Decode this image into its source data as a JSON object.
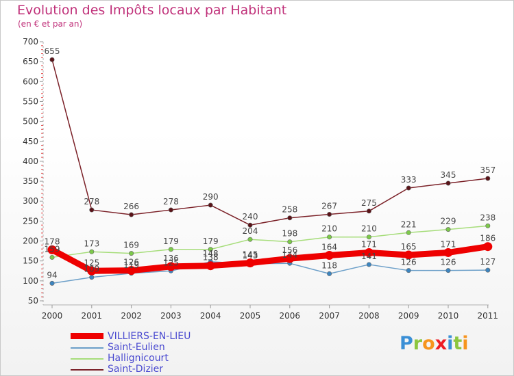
{
  "title": "Evolution des Impôts locaux par Habitant",
  "subtitle": "(en € et par an)",
  "brand": {
    "text": "Proxiti",
    "letters": [
      {
        "char": "P",
        "color": "#3a8fd6"
      },
      {
        "char": "r",
        "color": "#8cc63f"
      },
      {
        "char": "o",
        "color": "#f7941d"
      },
      {
        "char": "x",
        "color": "#ed1c24"
      },
      {
        "char": "i",
        "color": "#3a8fd6"
      },
      {
        "char": "t",
        "color": "#8cc63f"
      },
      {
        "char": "i",
        "color": "#f7941d"
      }
    ]
  },
  "chart_data": {
    "type": "line",
    "title": "Evolution des Impôts locaux par Habitant",
    "subtitle": "(en € et par an)",
    "xlabel": "",
    "ylabel": "",
    "ylim": [
      50,
      700
    ],
    "yticks": [
      50,
      100,
      150,
      200,
      250,
      300,
      350,
      400,
      450,
      500,
      550,
      600,
      650,
      700
    ],
    "categories": [
      "2000",
      "2001",
      "2002",
      "2003",
      "2004",
      "2005",
      "2006",
      "2007",
      "2008",
      "2009",
      "2010",
      "2011"
    ],
    "grid": false,
    "legend_position": "bottom-left",
    "series": [
      {
        "name": "Saint-Dizier",
        "color": "#7b2128",
        "dot_color": "#5a1318",
        "values": [
          655,
          278,
          266,
          278,
          290,
          240,
          258,
          267,
          275,
          333,
          345,
          357
        ]
      },
      {
        "name": "Hallignicourt",
        "color": "#a6dd7a",
        "dot_color": "#7cc94a",
        "values": [
          159,
          173,
          169,
          179,
          179,
          204,
          198,
          210,
          210,
          221,
          229,
          238
        ]
      },
      {
        "name": "Saint-Eulien",
        "color": "#6a9ec8",
        "dot_color": "#3c85c0",
        "values": [
          94,
          109,
          119,
          125,
          148,
          143,
          144,
          118,
          141,
          126,
          126,
          127
        ]
      },
      {
        "name": "VILLIERS-EN-LIEU",
        "color": "#ee0000",
        "dot_color": "#ee0000",
        "values": [
          178,
          125,
          126,
          136,
          138,
          145,
          156,
          164,
          171,
          165,
          171,
          186
        ]
      }
    ]
  },
  "legend": [
    {
      "name": "VILLIERS-EN-LIEU",
      "color": "#ee0000",
      "style": "thick"
    },
    {
      "name": "Saint-Eulien",
      "color": "#6a9ec8",
      "style": "thin"
    },
    {
      "name": "Hallignicourt",
      "color": "#a6dd7a",
      "style": "thin"
    },
    {
      "name": "Saint-Dizier",
      "color": "#7b2128",
      "style": "thin"
    }
  ]
}
